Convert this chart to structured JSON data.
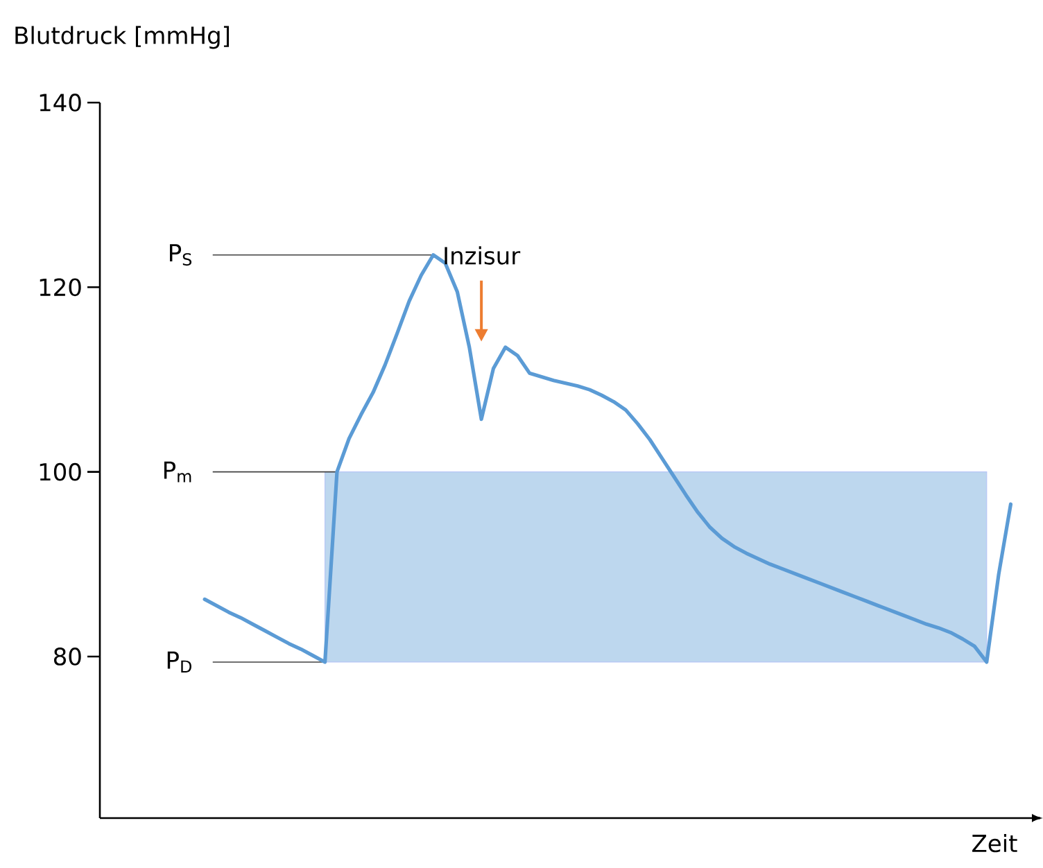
{
  "chart_data": {
    "type": "line",
    "ylabel": "Blutdruck [mmHg]",
    "xlabel": "Zeit",
    "categories": [
      null,
      null,
      null,
      null,
      null,
      null,
      null,
      null,
      null,
      null,
      null,
      null,
      null,
      null,
      null,
      null,
      null,
      null,
      null,
      null,
      null,
      null,
      null,
      null,
      null,
      null,
      null,
      null,
      null,
      null,
      null,
      null,
      null,
      null,
      null,
      null,
      null,
      null,
      null,
      null,
      null,
      null,
      null,
      null,
      null,
      null,
      null,
      null,
      null,
      null,
      null,
      null,
      null,
      null,
      null,
      null,
      null,
      null,
      null,
      null,
      null,
      null,
      null,
      null,
      null,
      null,
      null,
      null
    ],
    "ylim": [
      62.5,
      140
    ],
    "yticks": [
      80,
      100,
      120,
      140
    ],
    "tick_labels": "y",
    "series": [
      {
        "color": "#5b9bd5",
        "values": [
          86.2,
          85.5,
          84.8,
          84.2,
          83.5,
          82.8,
          82.1,
          81.4,
          80.8,
          80.1,
          79.4,
          100,
          103.6,
          106.2,
          108.6,
          111.6,
          115.0,
          118.5,
          121.3,
          123.5,
          122.6,
          119.5,
          113.5,
          105.7,
          111.2,
          113.5,
          112.6,
          110.7,
          110.3,
          109.9,
          109.6,
          109.3,
          108.9,
          108.3,
          107.6,
          106.7,
          105.2,
          103.5,
          101.5,
          99.5,
          97.5,
          95.6,
          94.0,
          92.8,
          91.9,
          91.2,
          90.6,
          90.0,
          89.5,
          89.0,
          88.5,
          88.0,
          87.5,
          87.0,
          86.5,
          86.0,
          85.5,
          85.0,
          84.5,
          84.0,
          83.5,
          83.1,
          82.6,
          81.9,
          81.1,
          79.4,
          88.9,
          96.5
        ]
      }
    ],
    "bands": [
      {
        "axis": "y",
        "from": 79.4,
        "to": 100,
        "color": "#bdd7ee"
      }
    ],
    "ref_lines": [
      {
        "axis": "y",
        "value": 123.5,
        "label": "P$_{S}$",
        "color": "#404040"
      },
      {
        "axis": "y",
        "value": 100,
        "label": "P$_{m}$",
        "color": "#404040"
      },
      {
        "axis": "y",
        "value": 79.4,
        "label": "P$_{D}$",
        "color": "#404040"
      }
    ],
    "annotations": [
      "Inzisur"
    ]
  }
}
